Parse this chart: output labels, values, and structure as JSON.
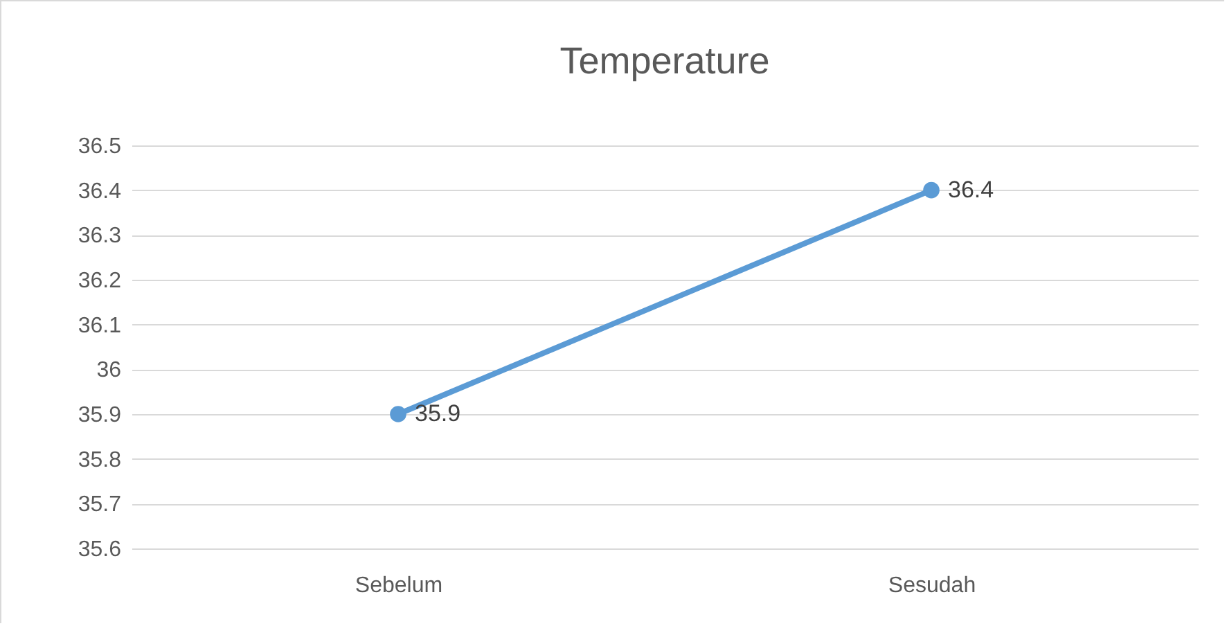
{
  "chart_data": {
    "type": "line",
    "title": "Temperature",
    "categories": [
      "Sebelum",
      "Sesudah"
    ],
    "series": [
      {
        "color": "#5b9bd5",
        "values": [
          35.9,
          36.4
        ]
      }
    ],
    "ylim": [
      35.6,
      36.5
    ],
    "yticks": [
      35.6,
      35.7,
      35.8,
      35.9,
      36,
      36.1,
      36.2,
      36.3,
      36.4,
      36.5
    ],
    "grid": "y",
    "marker": "circle",
    "line_style": "solid",
    "data_labels": true,
    "legend": false
  }
}
